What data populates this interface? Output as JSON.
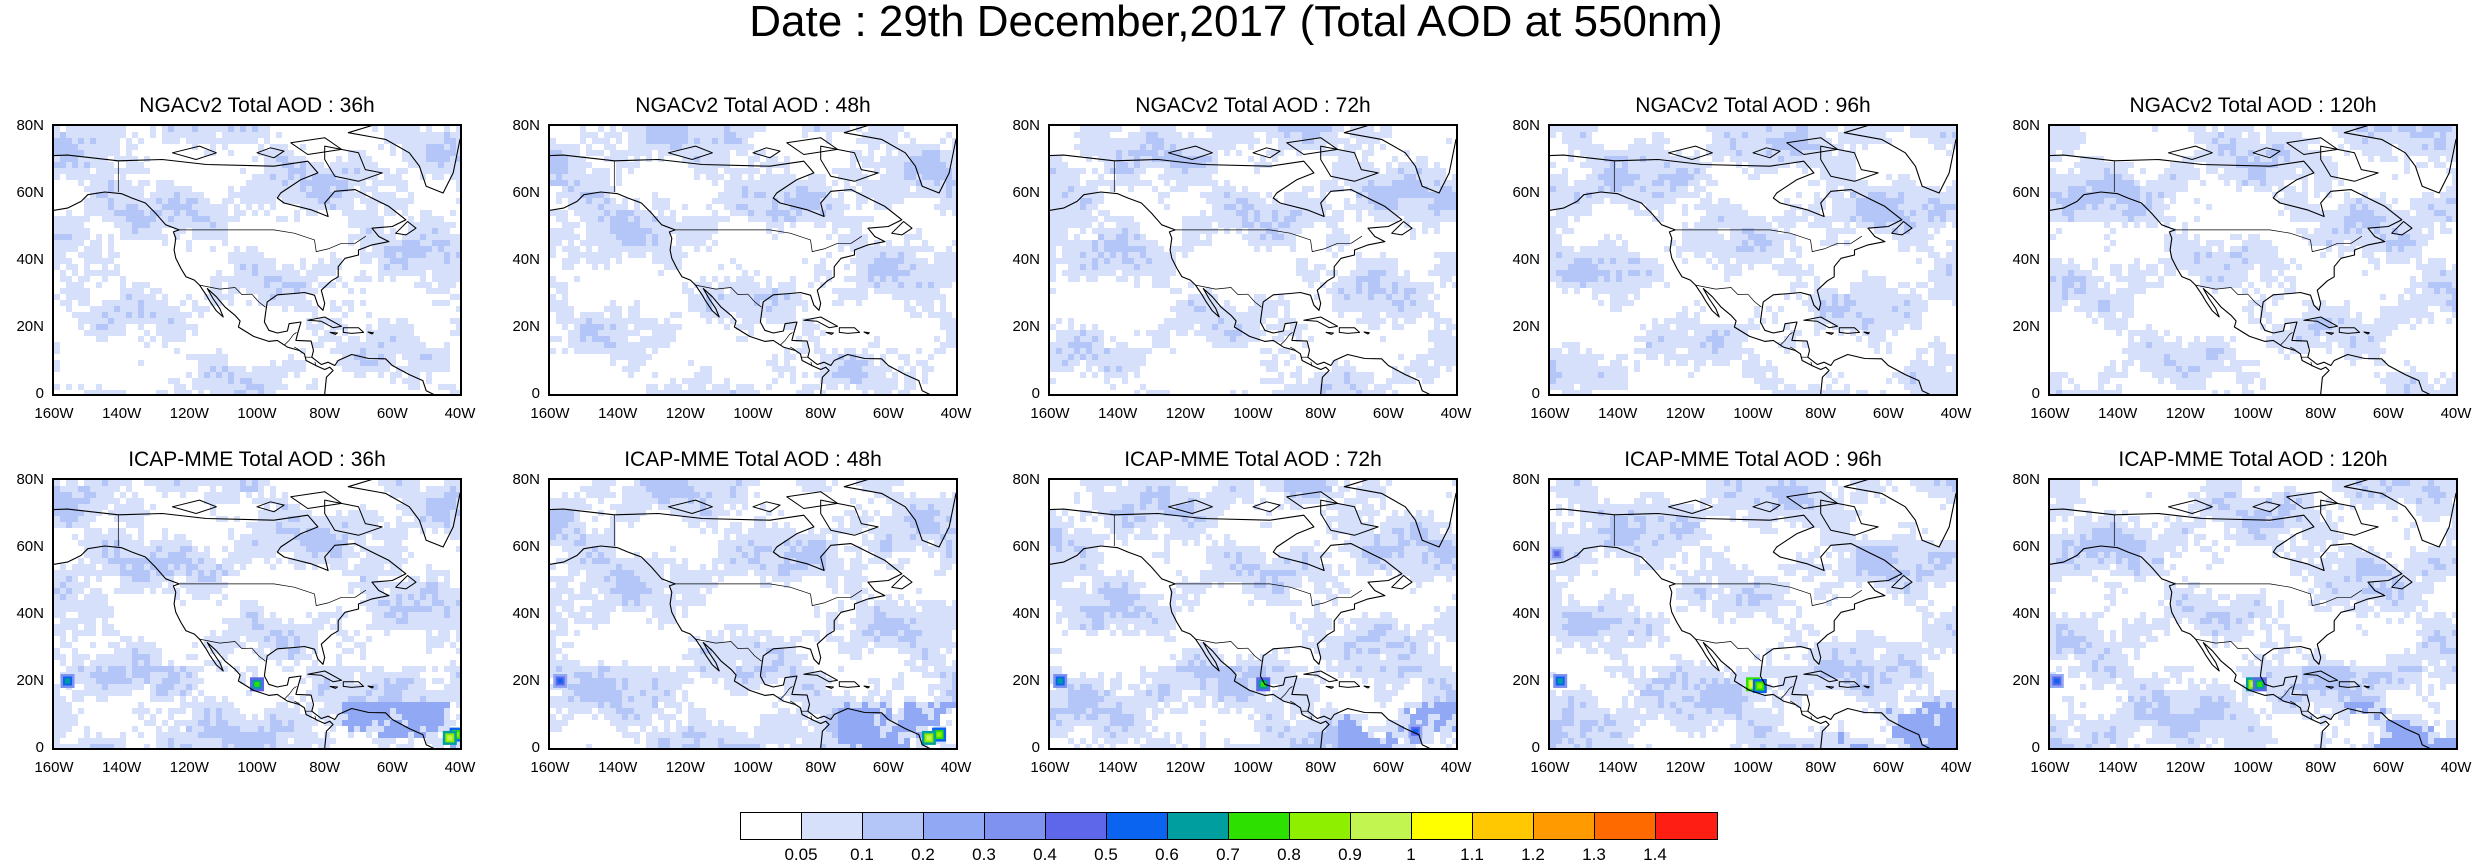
{
  "title": "Date : 29th December,2017 (Total AOD at 550nm)",
  "lat_labels": [
    "80N",
    "60N",
    "40N",
    "20N",
    "0"
  ],
  "lon_labels": [
    "160W",
    "140W",
    "120W",
    "100W",
    "80W",
    "60W",
    "40W"
  ],
  "panels": [
    {
      "title": "NGACv2 Total AOD : 36h"
    },
    {
      "title": "NGACv2 Total AOD : 48h"
    },
    {
      "title": "NGACv2 Total AOD : 72h"
    },
    {
      "title": "NGACv2 Total AOD : 96h"
    },
    {
      "title": "NGACv2 Total AOD : 120h"
    },
    {
      "title": "ICAP-MME Total AOD : 36h"
    },
    {
      "title": "ICAP-MME Total AOD : 48h"
    },
    {
      "title": "ICAP-MME Total AOD : 72h"
    },
    {
      "title": "ICAP-MME Total AOD : 96h"
    },
    {
      "title": "ICAP-MME Total AOD : 120h"
    }
  ],
  "colorbar": {
    "labels": [
      "0.05",
      "0.1",
      "0.2",
      "0.3",
      "0.4",
      "0.5",
      "0.6",
      "0.7",
      "0.8",
      "0.9",
      "1",
      "1.1",
      "1.2",
      "1.3",
      "1.4"
    ],
    "colors": [
      "#ffffff",
      "#d6e0fb",
      "#b4c6f8",
      "#91a9f5",
      "#7f92f0",
      "#5e66ea",
      "#0a64f0",
      "#009e9e",
      "#2de000",
      "#8ef000",
      "#c2f550",
      "#ffff00",
      "#ffc800",
      "#ff9b00",
      "#ff6a00",
      "#ff1e14"
    ]
  }
}
